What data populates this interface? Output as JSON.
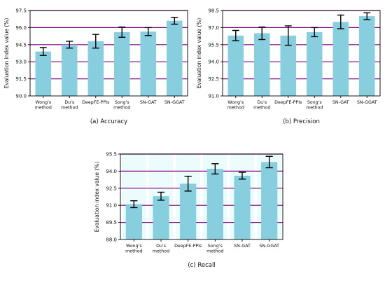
{
  "chart_data": [
    {
      "type": "bar",
      "caption": "(a) Accuracy",
      "ylabel": "Evaluation index value (%)",
      "ylim": [
        90.0,
        97.5
      ],
      "yticks": [
        "90.0",
        "91.5",
        "93.0",
        "94.5",
        "96.0",
        "97.5"
      ],
      "categories": [
        [
          "Wong's",
          "method"
        ],
        [
          "Du's",
          "method"
        ],
        [
          "DeepFE-PPIs"
        ],
        [
          "Song's",
          "method"
        ],
        [
          "SN-GAT"
        ],
        [
          "SN-GGAT"
        ]
      ],
      "values": [
        93.9,
        94.5,
        94.8,
        95.6,
        95.65,
        96.6
      ],
      "errors": [
        0.35,
        0.3,
        0.6,
        0.45,
        0.35,
        0.3
      ],
      "grid": "horizontal",
      "bar_color": "#87CEDF",
      "grid_color": "#800080",
      "background_bands": false
    },
    {
      "type": "bar",
      "caption": "(b) Precision",
      "ylabel": "Evaluation index value (%)",
      "ylim": [
        91.0,
        98.5
      ],
      "yticks": [
        "91.0",
        "92.5",
        "94.0",
        "95.5",
        "97.0",
        "98.5"
      ],
      "categories": [
        [
          "Wong's",
          "method"
        ],
        [
          "Du's",
          "method"
        ],
        [
          "DeepFE-PPIs"
        ],
        [
          "Song's",
          "method"
        ],
        [
          "SN-GAT"
        ],
        [
          "SN-GGAT"
        ]
      ],
      "values": [
        96.3,
        96.5,
        96.3,
        96.6,
        97.5,
        98.0
      ],
      "errors": [
        0.45,
        0.55,
        0.85,
        0.4,
        0.6,
        0.3
      ],
      "grid": "horizontal",
      "bar_color": "#87CEDF",
      "grid_color": "#800080",
      "background_bands": false
    },
    {
      "type": "bar",
      "caption": "(c) Recall",
      "ylabel": "Evaluation index value (%)",
      "ylim": [
        88.0,
        95.5
      ],
      "yticks": [
        "88.0",
        "89.5",
        "91.0",
        "92.5",
        "94.0",
        "95.5"
      ],
      "categories": [
        [
          "Wong's",
          "method"
        ],
        [
          "Du's",
          "method"
        ],
        [
          "DeepFE-PPIs"
        ],
        [
          "Song's",
          "method"
        ],
        [
          "SN-GAT"
        ],
        [
          "SN-GGAT"
        ]
      ],
      "values": [
        91.1,
        91.8,
        92.9,
        94.2,
        93.6,
        94.8
      ],
      "errors": [
        0.3,
        0.35,
        0.65,
        0.45,
        0.3,
        0.5
      ],
      "grid": "horizontal",
      "bar_color": "#87CEDF",
      "grid_color": "#800080",
      "background_bands": true
    }
  ]
}
